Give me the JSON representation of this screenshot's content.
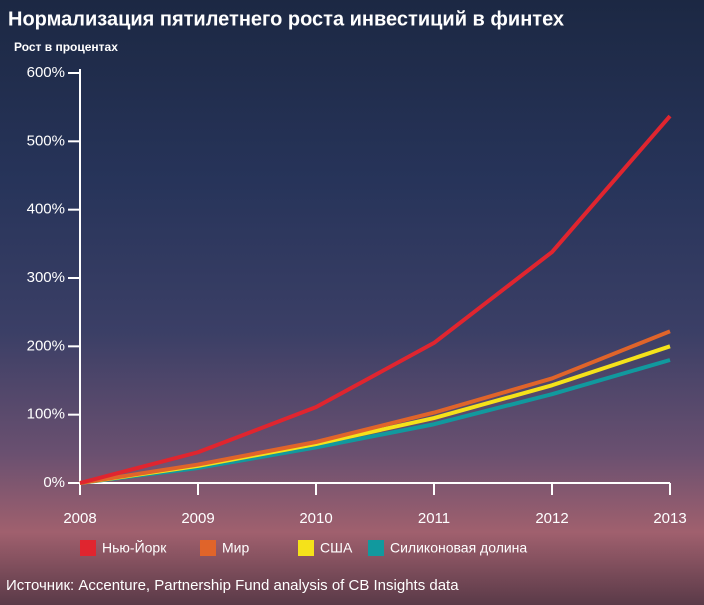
{
  "chart_data": {
    "type": "line",
    "title": "Нормализация пятилетнего роста инвестиций в финтех",
    "subtitle": "Рост в процентах",
    "source": "Источник: Accenture, Partnership Fund analysis of CB Insights data",
    "x": [
      2008,
      2009,
      2010,
      2011,
      2012,
      2013
    ],
    "xlim": [
      2008,
      2013
    ],
    "xticks": [
      2008,
      2009,
      2010,
      2011,
      2012,
      2013
    ],
    "ylim": [
      0,
      600
    ],
    "yticks": [
      {
        "value": 0,
        "label": "0%"
      },
      {
        "value": 100,
        "label": "100%"
      },
      {
        "value": 200,
        "label": "200%"
      },
      {
        "value": 300,
        "label": "300%"
      },
      {
        "value": 400,
        "label": "400%"
      },
      {
        "value": 500,
        "label": "500%"
      },
      {
        "value": 600,
        "label": "600%"
      }
    ],
    "series": [
      {
        "name": "Нью-Йорк",
        "color": "#e0252f",
        "values": [
          0,
          45,
          111,
          205,
          338,
          537
        ]
      },
      {
        "name": "Мир",
        "color": "#e0642a",
        "values": [
          0,
          27,
          60,
          103,
          153,
          222
        ]
      },
      {
        "name": "США",
        "color": "#f5e21a",
        "values": [
          0,
          25,
          57,
          95,
          143,
          200
        ]
      },
      {
        "name": "Силиконовая долина",
        "color": "#11999e",
        "values": [
          0,
          22,
          52,
          86,
          130,
          180
        ]
      }
    ]
  }
}
